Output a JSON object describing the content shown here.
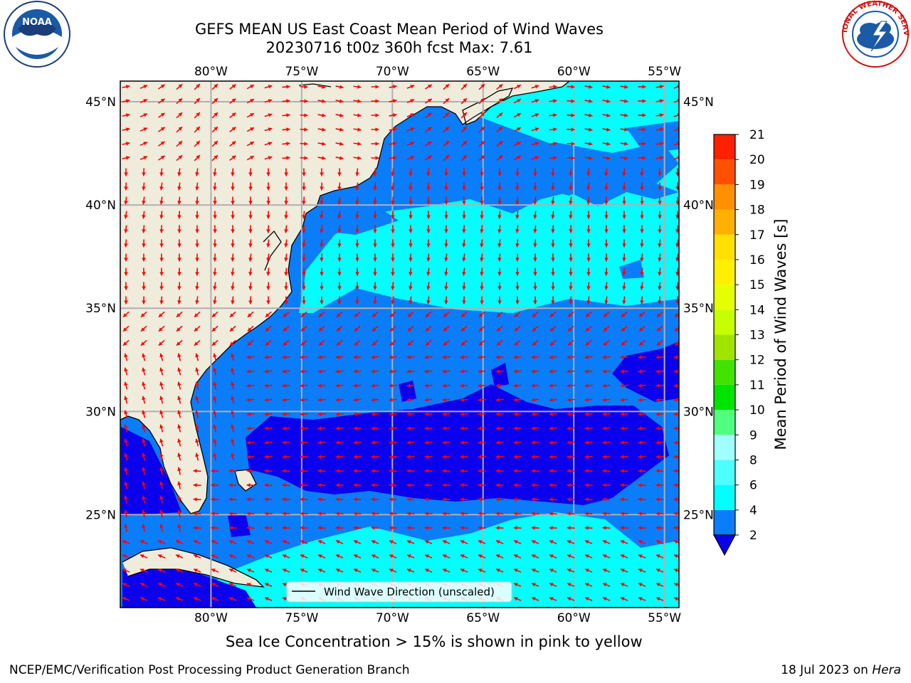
{
  "header": {
    "title_line1": "GEFS MEAN US East Coast Mean Period of Wind Waves",
    "title_line2": "20230716 t00z 360h fcst   Max: 7.61"
  },
  "logos": {
    "noaa_text": "NOAA",
    "noaa_ring": "NATIONAL OCEANIC AND ATMOSPHERIC ADMINISTRATION · U.S. DEPARTMENT OF COMMERCE",
    "nws_ring": "NATIONAL WEATHER SERVICE"
  },
  "map": {
    "lon_labels": [
      "80°W",
      "75°W",
      "70°W",
      "65°W",
      "60°W",
      "55°W"
    ],
    "lat_labels": [
      "45°N",
      "40°N",
      "35°N",
      "30°N",
      "25°N"
    ],
    "lon_values": [
      -80,
      -75,
      -70,
      -65,
      -60,
      -55
    ],
    "lat_values": [
      45,
      40,
      35,
      30,
      25
    ],
    "extent": {
      "lon_min": -85,
      "lon_max": -54.2,
      "lat_min": 20.5,
      "lat_max": 46
    },
    "legend_label": "Wind Wave Direction (unscaled)",
    "colors": {
      "land": "#efecdc",
      "ocean_2_4": "#0a7dfa",
      "ocean_4_6": "#00ffff",
      "ocean_under_2": "#0a00ee",
      "arrow": "#ff0000",
      "grid": "#b0b0b0"
    }
  },
  "colorbar": {
    "label": "Mean Period of Wind Waves [s]",
    "ticks": [
      "2",
      "4",
      "6",
      "8",
      "9",
      "10",
      "11",
      "12",
      "13",
      "14",
      "15",
      "16",
      "17",
      "18",
      "19",
      "20",
      "21"
    ],
    "colors": [
      "#0a7dfa",
      "#00ffff",
      "#4dffff",
      "#a0ffff",
      "#50ff80",
      "#00e400",
      "#40e400",
      "#a0e400",
      "#c8ff00",
      "#e6ff00",
      "#fff000",
      "#ffe000",
      "#ffb000",
      "#ff9000",
      "#ff5000",
      "#ff2000",
      "#ff0000"
    ]
  },
  "ice_note": "Sea Ice Concentration > 15% is shown in pink to yellow",
  "footer": {
    "left": "NCEP/EMC/Verification Post Processing Product Generation Branch",
    "right_prefix": "18 Jul 2023 on ",
    "right_host": "Hera"
  }
}
